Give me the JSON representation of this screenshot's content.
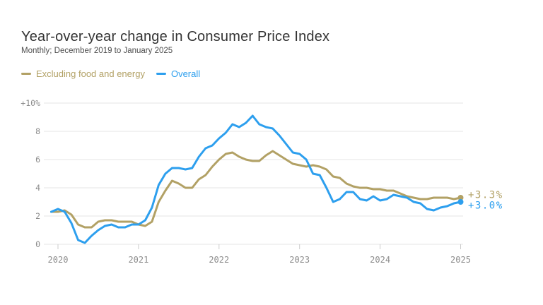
{
  "header": {
    "title": "Year-over-year change in Consumer Price Index",
    "subtitle": "Monthly; December 2019 to January 2025"
  },
  "legend": [
    {
      "label": "Excluding food and energy",
      "color": "#b2a165"
    },
    {
      "label": "Overall",
      "color": "#2d9fee"
    }
  ],
  "colors": {
    "grid": "#e4e4e4",
    "tick": "#cccccc",
    "axis_text": "#8c8c8c",
    "title_text": "#333333",
    "subtitle_text": "#4d4d4d"
  },
  "chart_data": {
    "type": "line",
    "title": "Year-over-year change in Consumer Price Index",
    "subtitle": "Monthly; December 2019 to January 2025",
    "x_unit": "month",
    "x_start": "2019-12",
    "x_end": "2025-01",
    "n_points": 62,
    "ylim": [
      0,
      10
    ],
    "grid": "horizontal",
    "legend_position": "top-left",
    "y_ticks": [
      {
        "value": 0,
        "label": "0"
      },
      {
        "value": 2,
        "label": "2"
      },
      {
        "value": 4,
        "label": "4"
      },
      {
        "value": 6,
        "label": "6"
      },
      {
        "value": 8,
        "label": "8"
      },
      {
        "value": 10,
        "label": "+10%"
      }
    ],
    "x_ticks": [
      {
        "month_index": 1,
        "label": "2020"
      },
      {
        "month_index": 13,
        "label": "2021"
      },
      {
        "month_index": 25,
        "label": "2022"
      },
      {
        "month_index": 37,
        "label": "2023"
      },
      {
        "month_index": 49,
        "label": "2024"
      },
      {
        "month_index": 61,
        "label": "2025"
      }
    ],
    "series": [
      {
        "name": "Excluding food and energy",
        "color": "#b2a165",
        "end_label": "+3.3%",
        "values": [
          2.3,
          2.3,
          2.4,
          2.1,
          1.4,
          1.2,
          1.2,
          1.6,
          1.7,
          1.7,
          1.6,
          1.6,
          1.6,
          1.4,
          1.3,
          1.6,
          3.0,
          3.8,
          4.5,
          4.3,
          4.0,
          4.0,
          4.6,
          4.9,
          5.5,
          6.0,
          6.4,
          6.5,
          6.2,
          6.0,
          5.9,
          5.9,
          6.3,
          6.6,
          6.3,
          6.0,
          5.7,
          5.6,
          5.5,
          5.6,
          5.5,
          5.3,
          4.8,
          4.7,
          4.3,
          4.1,
          4.0,
          4.0,
          3.9,
          3.9,
          3.8,
          3.8,
          3.6,
          3.4,
          3.3,
          3.2,
          3.2,
          3.3,
          3.3,
          3.3,
          3.2,
          3.3
        ]
      },
      {
        "name": "Overall",
        "color": "#2d9fee",
        "end_label": "+3.0%",
        "values": [
          2.3,
          2.5,
          2.3,
          1.5,
          0.3,
          0.1,
          0.6,
          1.0,
          1.3,
          1.4,
          1.2,
          1.2,
          1.4,
          1.4,
          1.7,
          2.6,
          4.2,
          5.0,
          5.4,
          5.4,
          5.3,
          5.4,
          6.2,
          6.8,
          7.0,
          7.5,
          7.9,
          8.5,
          8.3,
          8.6,
          9.1,
          8.5,
          8.3,
          8.2,
          7.7,
          7.1,
          6.5,
          6.4,
          6.0,
          5.0,
          4.9,
          4.0,
          3.0,
          3.2,
          3.7,
          3.7,
          3.2,
          3.1,
          3.4,
          3.1,
          3.2,
          3.5,
          3.4,
          3.3,
          3.0,
          2.9,
          2.5,
          2.4,
          2.6,
          2.7,
          2.9,
          3.0
        ]
      }
    ]
  }
}
